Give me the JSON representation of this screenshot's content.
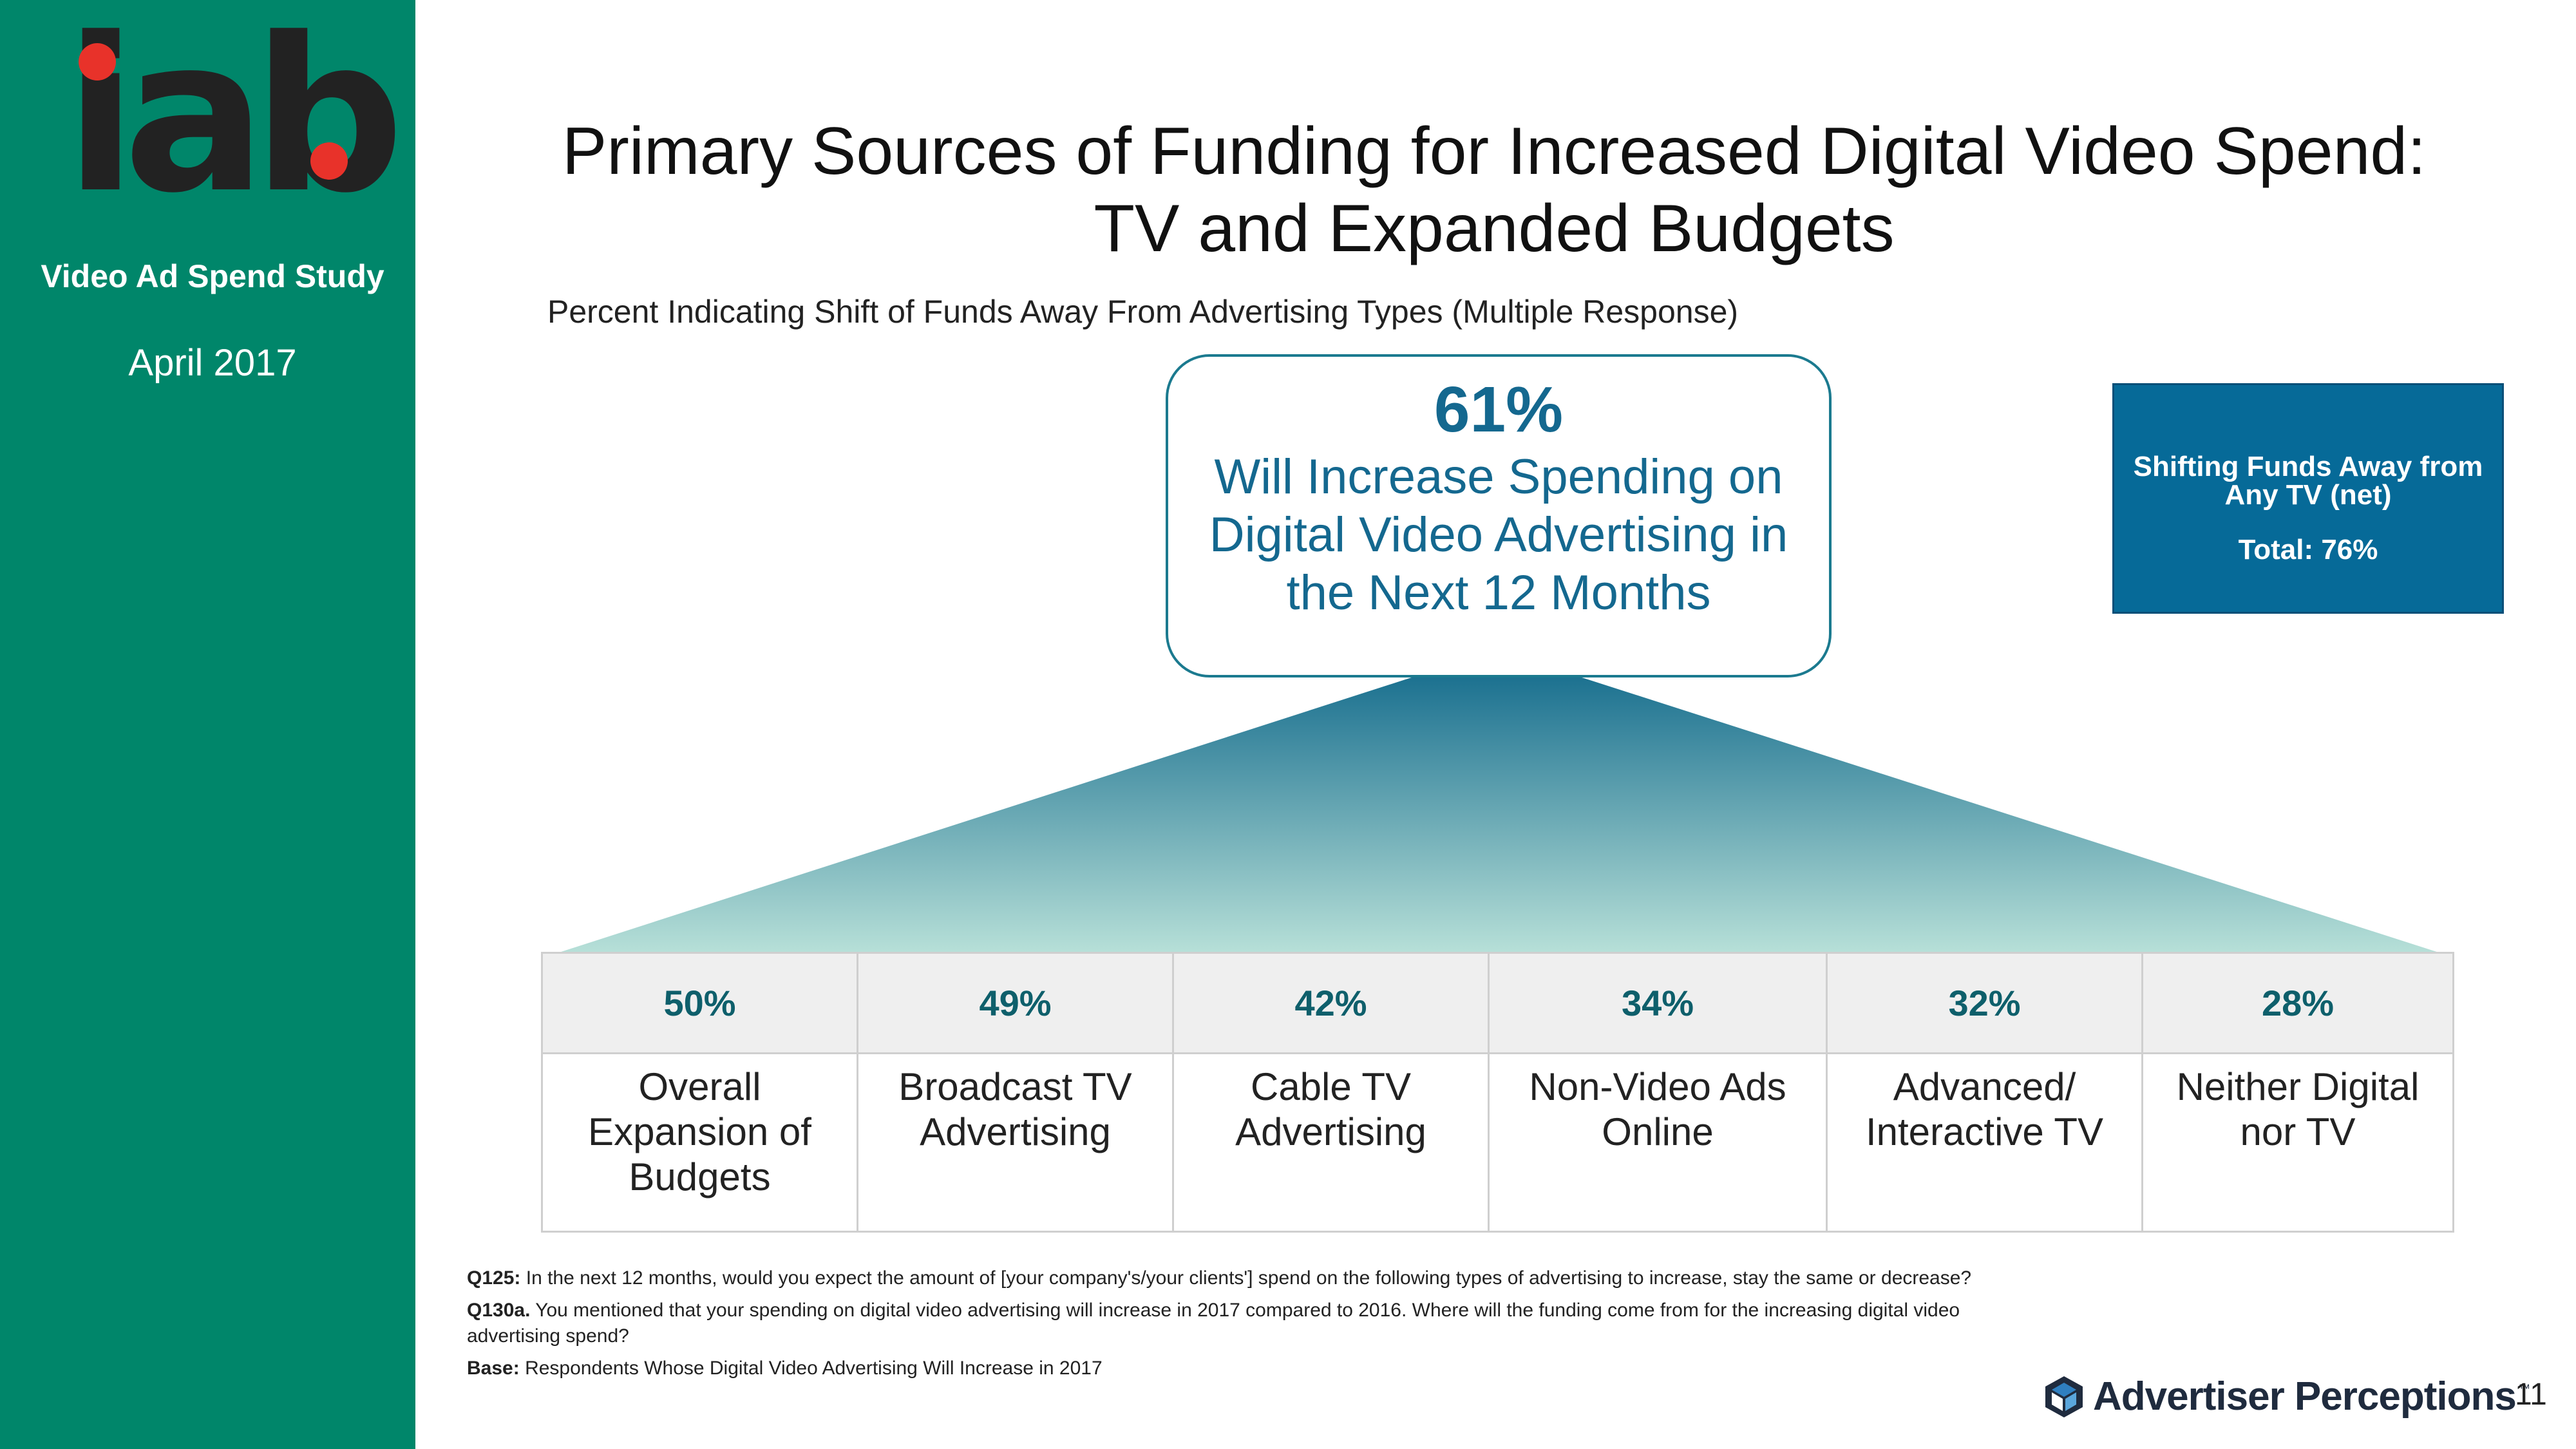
{
  "sidebar": {
    "logo_text": "iab",
    "study_name": "Video Ad Spend Study",
    "date": "April 2017"
  },
  "title": {
    "line1": "Primary Sources of Funding for Increased Digital Video Spend:",
    "line2": "TV and Expanded Budgets"
  },
  "subtitle": "Percent Indicating Shift of Funds Away From Advertising Types (Multiple Response)",
  "callout": {
    "percent": "61%",
    "text": "Will Increase Spending on Digital Video Advertising in the Next 12 Months"
  },
  "net_box": {
    "label": "Shifting Funds Away from Any TV (net)",
    "total": "Total: 76%"
  },
  "chart_data": {
    "type": "table",
    "title": "Primary Sources of Funding for Increased Digital Video Spend: TV and Expanded Budgets",
    "subtitle": "Percent Indicating Shift of Funds Away From Advertising Types (Multiple Response)",
    "categories": [
      "Overall Expansion of Budgets",
      "Broadcast TV Advertising",
      "Cable TV Advertising",
      "Non-Video Ads Online",
      "Advanced/ Interactive TV",
      "Neither Digital nor TV"
    ],
    "values": [
      50,
      49,
      42,
      34,
      32,
      28
    ],
    "value_labels": [
      "50%",
      "49%",
      "42%",
      "34%",
      "32%",
      "28%"
    ],
    "unit": "%"
  },
  "footnotes": {
    "q125_label": "Q125:",
    "q125_text": "In the next 12 months, would you expect the amount of [your company's/your clients'] spend on the following types of advertising to increase, stay the same or decrease?",
    "q130a_label": "Q130a.",
    "q130a_text": "You mentioned that your spending on digital video advertising will increase in 2017 compared to 2016. Where will the funding come from for the increasing digital video advertising spend?",
    "base_label": "Base:",
    "base_text": "Respondents Whose Digital Video Advertising Will Increase in 2017"
  },
  "footer": {
    "brand": "Advertiser Perceptions",
    "tm": "™",
    "page_number": "11"
  },
  "colors": {
    "sidebar_green": "#00866a",
    "iab_red": "#e8322a",
    "callout_blue": "#14688f",
    "net_box_blue": "#066a98",
    "funnel_top": "#1c7190",
    "funnel_bottom": "#b7e0d8",
    "pct_text": "#0e5f6b"
  }
}
